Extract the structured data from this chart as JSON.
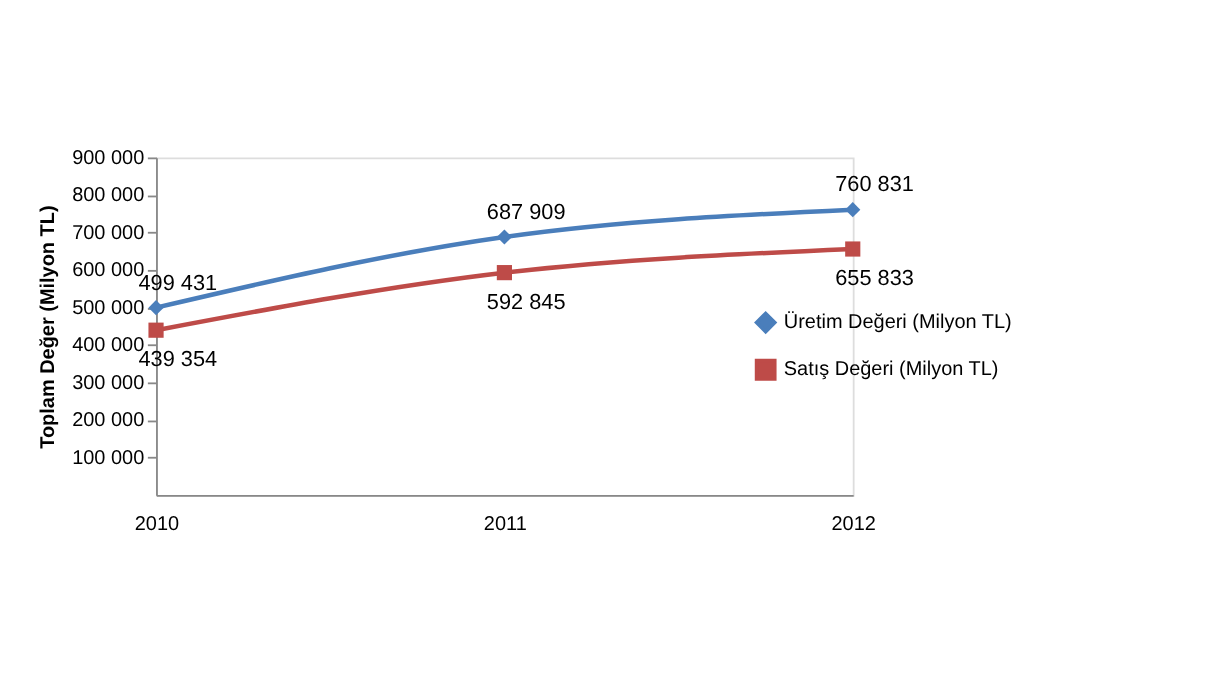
{
  "chart_data": {
    "type": "line",
    "ylabel": "Toplam Değer (Milyon TL)",
    "categories": [
      "2010",
      "2011",
      "2012"
    ],
    "series": [
      {
        "name": "Üretim Değeri (Milyon TL)",
        "color": "#4a7ebb",
        "marker": "diamond",
        "values": [
          499431,
          687909,
          760831
        ],
        "value_labels": [
          "499 431",
          "687 909",
          "760 831"
        ]
      },
      {
        "name": "Satış Değeri (Milyon TL)",
        "color": "#be4b48",
        "marker": "square",
        "values": [
          439354,
          592845,
          655833
        ],
        "value_labels": [
          "439 354",
          "592 845",
          "655 833"
        ]
      }
    ],
    "ylim": [
      0,
      900000
    ],
    "yticks": [
      {
        "value": 100000,
        "label": "100 000"
      },
      {
        "value": 200000,
        "label": "200 000"
      },
      {
        "value": 300000,
        "label": "300 000"
      },
      {
        "value": 400000,
        "label": "400 000"
      },
      {
        "value": 500000,
        "label": "500 000"
      },
      {
        "value": 600000,
        "label": "600 000"
      },
      {
        "value": 700000,
        "label": "700 000"
      },
      {
        "value": 800000,
        "label": "800 000"
      },
      {
        "value": 900000,
        "label": "900 000"
      }
    ],
    "grid": false,
    "legend": "right",
    "line_style": "solid"
  }
}
